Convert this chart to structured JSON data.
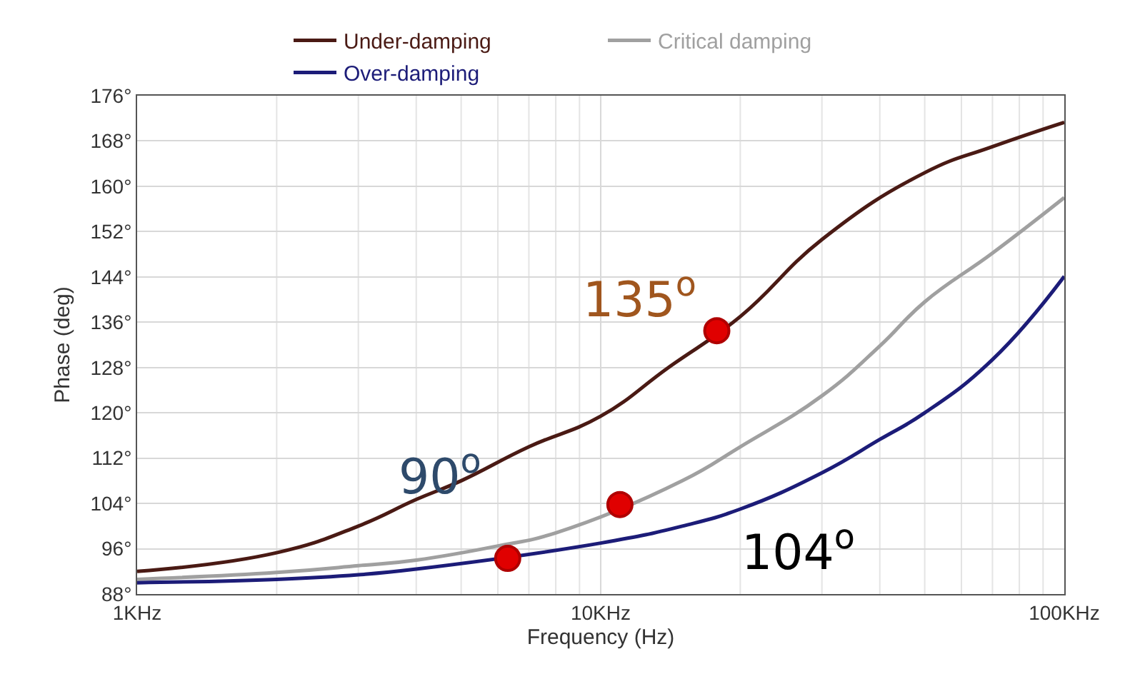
{
  "chart_data": {
    "type": "line",
    "xlabel": "Frequency (Hz)",
    "ylabel": "Phase (deg)",
    "log": "x",
    "grid": true,
    "legend": "top",
    "line_style": "solid",
    "marker": "none",
    "xlim": [
      1,
      100
    ],
    "xticks": [
      {
        "value": 1,
        "label": "1KHz"
      },
      {
        "value": 10,
        "label": "10KHz"
      },
      {
        "value": 100,
        "label": "100KHz"
      }
    ],
    "ylim": [
      88,
      176
    ],
    "yticks": [
      {
        "value": 88,
        "label": "88°"
      },
      {
        "value": 96,
        "label": "96°"
      },
      {
        "value": 104,
        "label": "104°"
      },
      {
        "value": 112,
        "label": "112°"
      },
      {
        "value": 120,
        "label": "120°"
      },
      {
        "value": 128,
        "label": "128°"
      },
      {
        "value": 136,
        "label": "136°"
      },
      {
        "value": 144,
        "label": "144°"
      },
      {
        "value": 152,
        "label": "152°"
      },
      {
        "value": 160,
        "label": "160°"
      },
      {
        "value": 168,
        "label": "168°"
      },
      {
        "value": 176,
        "label": "176°"
      }
    ],
    "series": [
      {
        "name": "Under-damping",
        "color": "#4a1a14",
        "x": [
          1,
          2,
          3,
          4,
          5,
          7,
          10,
          14,
          20,
          30,
          50,
          70,
          100
        ],
        "values": [
          92,
          95.3,
          100,
          104.7,
          108,
          114,
          119.4,
          128,
          137,
          150.6,
          162.4,
          167,
          171.3
        ]
      },
      {
        "name": "Critical damping",
        "color": "#a0a0a0",
        "x": [
          1,
          2,
          3,
          4,
          6,
          8,
          15,
          20,
          30,
          40,
          50,
          70,
          100
        ],
        "values": [
          90.6,
          91.8,
          93,
          94,
          96.5,
          98.8,
          108,
          114,
          123,
          131.8,
          139.6,
          148.2,
          158
        ]
      },
      {
        "name": "Over-damping",
        "color": "#1c1c78",
        "x": [
          1,
          2,
          3,
          4,
          10,
          15,
          20,
          30,
          40,
          50,
          70,
          100
        ],
        "values": [
          90,
          90.6,
          91.4,
          92.4,
          97,
          100,
          103,
          109.4,
          115.3,
          120,
          129.4,
          144.1
        ]
      },
      {
        "type": "scatter",
        "marker": "circle",
        "color": "#e00000",
        "x": [
          17.8,
          11,
          6.3
        ],
        "values": [
          134.5,
          103.8,
          94.3
        ]
      }
    ],
    "annotations": [
      "135$^{o}$",
      "90$^{o}$",
      "104$^{o}$"
    ]
  }
}
